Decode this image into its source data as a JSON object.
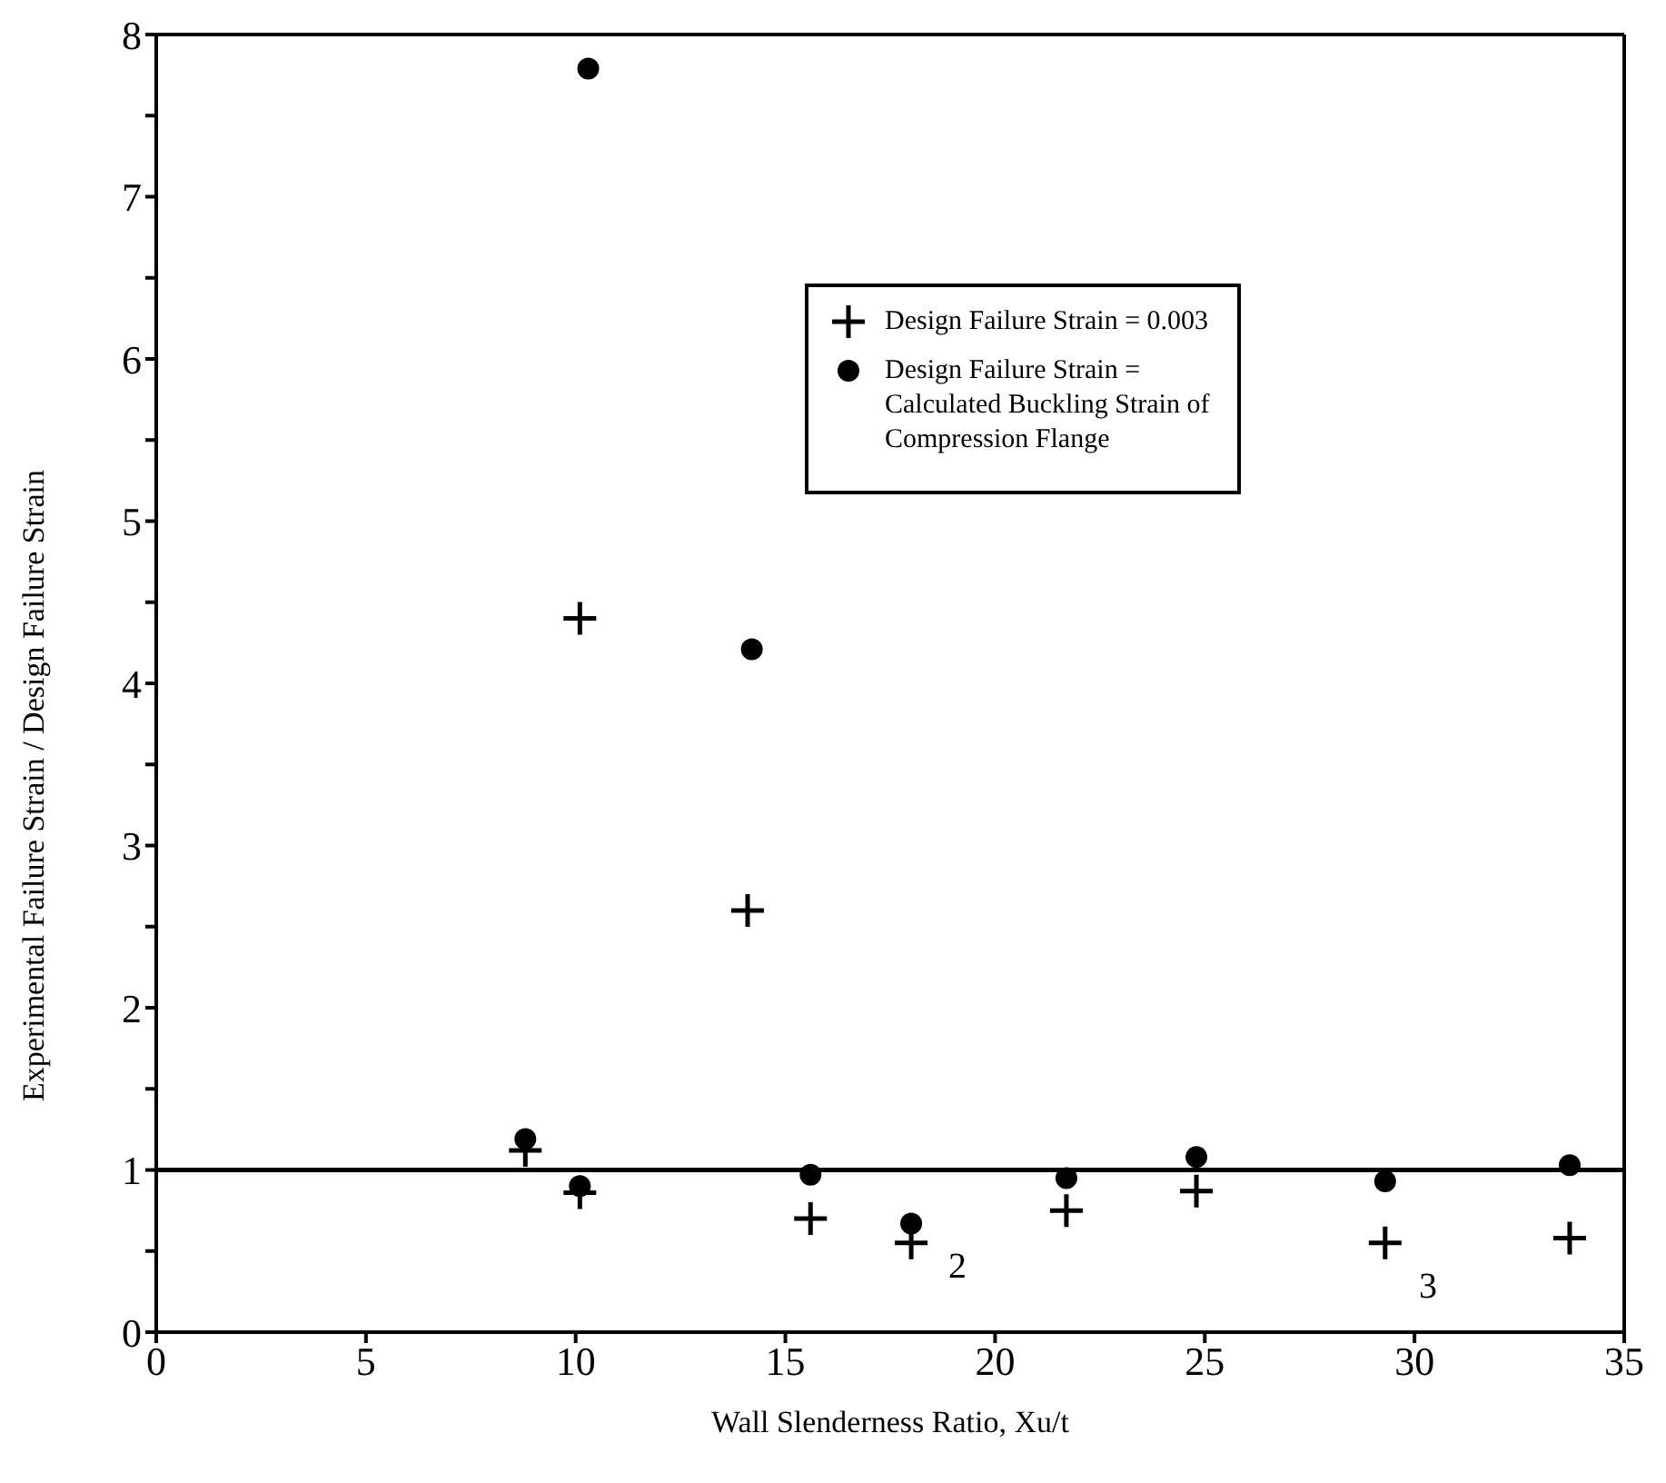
{
  "chart_data": {
    "type": "scatter",
    "xlabel": "Wall Slenderness Ratio, Xu/t",
    "ylabel": "Experimental Failure Strain / Design Failure Strain",
    "series": [
      {
        "name": "Design Failure Strain = 0.003",
        "color": "#000000",
        "marker": "cross",
        "x": [
          8.8,
          10.1,
          10.1,
          14.1,
          15.6,
          18.0,
          21.7,
          24.8,
          29.3,
          33.7
        ],
        "values": [
          1.12,
          4.4,
          0.86,
          2.6,
          0.7,
          0.55,
          0.75,
          0.87,
          0.55,
          0.58
        ]
      },
      {
        "name": "Design Failure Strain = Calculated Buckling Strain of Compression Flange",
        "color": "#000000",
        "marker": "circle",
        "x": [
          8.8,
          10.1,
          10.3,
          14.2,
          15.6,
          18.0,
          21.7,
          24.8,
          29.3,
          33.7
        ],
        "values": [
          1.19,
          0.9,
          7.79,
          4.21,
          0.97,
          0.67,
          0.95,
          1.08,
          0.93,
          1.03
        ]
      }
    ],
    "xlim": [
      0,
      35
    ],
    "xticks": [
      0,
      5,
      10,
      15,
      20,
      25,
      30,
      35
    ],
    "ylim": [
      0,
      8
    ],
    "yticks": [
      0,
      {
        "value": 0.5,
        "label": null
      },
      1,
      {
        "value": 1.5,
        "label": null
      },
      2,
      {
        "value": 2.5,
        "label": null
      },
      3,
      {
        "value": 3.5,
        "label": null
      },
      4,
      {
        "value": 4.5,
        "label": null
      },
      5,
      {
        "value": 5.5,
        "label": null
      },
      6,
      {
        "value": 6.5,
        "label": null
      },
      7,
      {
        "value": 7.5,
        "label": null
      },
      8
    ],
    "ref_lines": [
      {
        "axis": "y",
        "value": 1,
        "color": "#000000"
      }
    ],
    "annotations": [
      "2",
      "3"
    ],
    "legend": "top right"
  }
}
